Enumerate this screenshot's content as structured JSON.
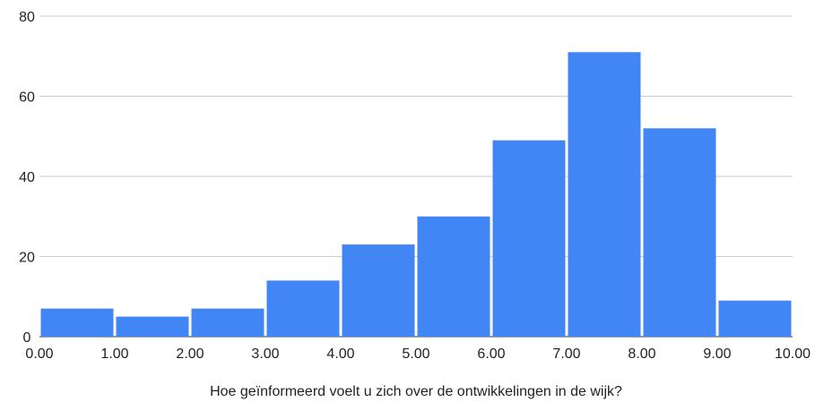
{
  "chart_data": {
    "type": "bar",
    "title": "",
    "xlabel": "Hoe geïnformeerd voelt u zich over de ontwikkelingen in de wijk?",
    "ylabel": "",
    "bin_edges": [
      0,
      1,
      2,
      3,
      4,
      5,
      6,
      7,
      8,
      9,
      10
    ],
    "x_tick_labels": [
      "0.00",
      "1.00",
      "2.00",
      "3.00",
      "4.00",
      "5.00",
      "6.00",
      "7.00",
      "8.00",
      "9.00",
      "10.00"
    ],
    "values": [
      7,
      5,
      7,
      14,
      23,
      30,
      49,
      71,
      52,
      9
    ],
    "ylim": [
      0,
      80
    ],
    "y_ticks": [
      0,
      20,
      40,
      60,
      80
    ],
    "grid": true,
    "legend": "none",
    "colors": {
      "bar": "#4285f4",
      "grid": "#cccccc",
      "text": "#222222"
    }
  }
}
